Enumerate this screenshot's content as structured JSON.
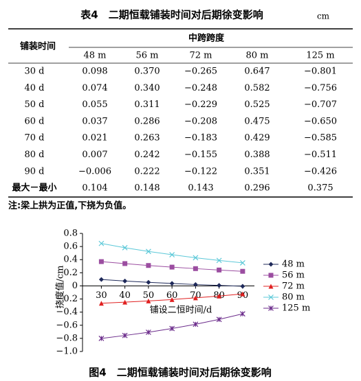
{
  "table": {
    "title": "表4　二期恒载铺装时间对后期徐变影响",
    "unit": "cm",
    "row_header": "铺装时间",
    "group_header": "中跨跨度",
    "columns": [
      "48 m",
      "56 m",
      "72 m",
      "80 m",
      "125 m"
    ],
    "rows": [
      [
        "30 d",
        "0.098",
        "0.370",
        "−0.265",
        "0.647",
        "−0.801"
      ],
      [
        "40 d",
        "0.074",
        "0.340",
        "−0.248",
        "0.582",
        "−0.756"
      ],
      [
        "50 d",
        "0.055",
        "0.311",
        "−0.229",
        "0.525",
        "−0.707"
      ],
      [
        "60 d",
        "0.037",
        "0.286",
        "−0.208",
        "0.475",
        "−0.650"
      ],
      [
        "70 d",
        "0.021",
        "0.263",
        "−0.183",
        "0.429",
        "−0.585"
      ],
      [
        "80 d",
        "0.007",
        "0.242",
        "−0.155",
        "0.388",
        "−0.511"
      ],
      [
        "90 d",
        "−0.006",
        "0.222",
        "−0.122",
        "0.351",
        "−0.426"
      ],
      [
        "最大－最小",
        "0.104",
        "0.148",
        "0.143",
        "0.296",
        "0.375"
      ]
    ],
    "note": "注:梁上拱为正值,下挠为负值。"
  },
  "chart_data": {
    "type": "line",
    "title": "图4　二期恒载铺装时间对后期徐变影响",
    "x_label": "铺设二恒时间/d",
    "y_label": "挠度值/cm",
    "x": [
      30,
      40,
      50,
      60,
      70,
      80,
      90
    ],
    "xlim": [
      22,
      95
    ],
    "xticks": [
      30,
      40,
      50,
      60,
      70,
      80,
      90
    ],
    "ylim": [
      -1.0,
      0.8
    ],
    "yticks": [
      0.8,
      0.6,
      0.4,
      0.2,
      0,
      {
        "value": -0.2,
        "label": "−0.2"
      },
      {
        "value": -0.4,
        "label": "−0.4"
      },
      {
        "value": -0.6,
        "label": "−0.6"
      },
      {
        "value": -0.8,
        "label": "−0.8"
      },
      {
        "value": -1.0,
        "label": "−1.0"
      }
    ],
    "series": [
      {
        "name": "48 m",
        "color": "#1f2a5a",
        "marker": "diamond",
        "values": [
          0.098,
          0.074,
          0.055,
          0.037,
          0.021,
          0.007,
          -0.006
        ]
      },
      {
        "name": "56 m",
        "color": "#9b4da0",
        "marker": "square",
        "values": [
          0.37,
          0.34,
          0.311,
          0.286,
          0.263,
          0.242,
          0.222
        ]
      },
      {
        "name": "72 m",
        "color": "#e02020",
        "marker": "triangle",
        "values": [
          -0.265,
          -0.248,
          -0.229,
          -0.208,
          -0.183,
          -0.155,
          -0.122
        ]
      },
      {
        "name": "80 m",
        "color": "#5bc8d8",
        "marker": "x",
        "values": [
          0.647,
          0.582,
          0.525,
          0.475,
          0.429,
          0.388,
          0.351
        ]
      },
      {
        "name": "125 m",
        "color": "#6a2a8a",
        "marker": "star",
        "values": [
          -0.801,
          -0.756,
          -0.707,
          -0.65,
          -0.585,
          -0.511,
          -0.426
        ]
      }
    ]
  }
}
